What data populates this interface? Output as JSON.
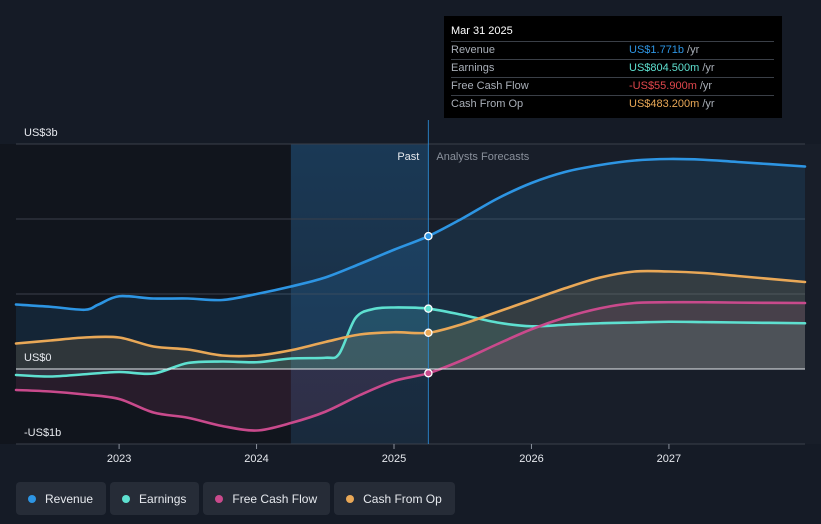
{
  "chart_data": {
    "type": "line",
    "y_labels": [
      "US$3b",
      "US$0",
      "-US$1b"
    ],
    "ylim": [
      -1000,
      3000
    ],
    "xlim": [
      2022.25,
      2027.99
    ],
    "x_ticks": [
      {
        "value": 2023,
        "label": "2023"
      },
      {
        "value": 2024,
        "label": "2024"
      },
      {
        "value": 2025,
        "label": "2025"
      },
      {
        "value": 2026,
        "label": "2026"
      },
      {
        "value": 2027,
        "label": "2027"
      }
    ],
    "divider_x": 2025.25,
    "highlight_start": 2024.25,
    "past_label": "Past",
    "forecast_label": "Analysts Forecasts",
    "series": [
      {
        "name": "Revenue",
        "color": "#2d95e3",
        "points": [
          [
            2022.25,
            860
          ],
          [
            2022.5,
            830
          ],
          [
            2022.75,
            790
          ],
          [
            2022.85,
            860
          ],
          [
            2023.0,
            970
          ],
          [
            2023.25,
            940
          ],
          [
            2023.5,
            940
          ],
          [
            2023.75,
            920
          ],
          [
            2024.0,
            1000
          ],
          [
            2024.25,
            1100
          ],
          [
            2024.5,
            1220
          ],
          [
            2024.75,
            1400
          ],
          [
            2025.0,
            1590
          ],
          [
            2025.25,
            1771
          ],
          [
            2025.5,
            2010
          ],
          [
            2025.75,
            2270
          ],
          [
            2026.0,
            2480
          ],
          [
            2026.25,
            2630
          ],
          [
            2026.5,
            2720
          ],
          [
            2026.75,
            2780
          ],
          [
            2027.0,
            2800
          ],
          [
            2027.25,
            2790
          ],
          [
            2027.5,
            2760
          ],
          [
            2027.99,
            2700
          ]
        ]
      },
      {
        "name": "Earnings",
        "color": "#5ee0d0",
        "points": [
          [
            2022.25,
            -80
          ],
          [
            2022.5,
            -100
          ],
          [
            2022.75,
            -70
          ],
          [
            2023.0,
            -40
          ],
          [
            2023.25,
            -60
          ],
          [
            2023.5,
            80
          ],
          [
            2023.75,
            100
          ],
          [
            2024.0,
            90
          ],
          [
            2024.25,
            140
          ],
          [
            2024.5,
            150
          ],
          [
            2024.6,
            200
          ],
          [
            2024.72,
            680
          ],
          [
            2024.85,
            800
          ],
          [
            2025.0,
            820
          ],
          [
            2025.25,
            804.5
          ],
          [
            2025.5,
            720
          ],
          [
            2025.75,
            620
          ],
          [
            2026.0,
            570
          ],
          [
            2026.25,
            590
          ],
          [
            2026.5,
            610
          ],
          [
            2026.75,
            620
          ],
          [
            2027.0,
            630
          ],
          [
            2027.25,
            625
          ],
          [
            2027.5,
            620
          ],
          [
            2027.99,
            610
          ]
        ]
      },
      {
        "name": "Free Cash Flow",
        "color": "#c94a8c",
        "points": [
          [
            2022.25,
            -280
          ],
          [
            2022.5,
            -300
          ],
          [
            2022.75,
            -340
          ],
          [
            2023.0,
            -400
          ],
          [
            2023.25,
            -580
          ],
          [
            2023.5,
            -650
          ],
          [
            2023.75,
            -760
          ],
          [
            2024.0,
            -820
          ],
          [
            2024.25,
            -720
          ],
          [
            2024.5,
            -570
          ],
          [
            2024.75,
            -350
          ],
          [
            2025.0,
            -160
          ],
          [
            2025.25,
            -55.9
          ],
          [
            2025.5,
            120
          ],
          [
            2025.75,
            330
          ],
          [
            2026.0,
            530
          ],
          [
            2026.25,
            690
          ],
          [
            2026.5,
            810
          ],
          [
            2026.75,
            880
          ],
          [
            2027.0,
            890
          ],
          [
            2027.25,
            890
          ],
          [
            2027.5,
            885
          ],
          [
            2027.99,
            880
          ]
        ]
      },
      {
        "name": "Cash From Op",
        "color": "#e9a857",
        "points": [
          [
            2022.25,
            340
          ],
          [
            2022.5,
            380
          ],
          [
            2022.75,
            420
          ],
          [
            2023.0,
            420
          ],
          [
            2023.25,
            300
          ],
          [
            2023.5,
            260
          ],
          [
            2023.75,
            180
          ],
          [
            2024.0,
            180
          ],
          [
            2024.25,
            250
          ],
          [
            2024.5,
            360
          ],
          [
            2024.75,
            460
          ],
          [
            2025.0,
            490
          ],
          [
            2025.25,
            483.2
          ],
          [
            2025.5,
            600
          ],
          [
            2025.75,
            760
          ],
          [
            2026.0,
            920
          ],
          [
            2026.25,
            1080
          ],
          [
            2026.5,
            1220
          ],
          [
            2026.75,
            1300
          ],
          [
            2027.0,
            1300
          ],
          [
            2027.25,
            1280
          ],
          [
            2027.5,
            1240
          ],
          [
            2027.99,
            1160
          ]
        ]
      }
    ]
  },
  "tooltip": {
    "date": "Mar 31 2025",
    "rows": [
      {
        "name": "Revenue",
        "value": "US$1.771b",
        "unit": "/yr",
        "color": "#2d95e3"
      },
      {
        "name": "Earnings",
        "value": "US$804.500m",
        "unit": "/yr",
        "color": "#5ee0d0"
      },
      {
        "name": "Free Cash Flow",
        "value": "-US$55.900m",
        "unit": "/yr",
        "color": "#e0474c"
      },
      {
        "name": "Cash From Op",
        "value": "US$483.200m",
        "unit": "/yr",
        "color": "#e9a857"
      }
    ]
  },
  "legend": [
    {
      "label": "Revenue",
      "color": "#2d95e3"
    },
    {
      "label": "Earnings",
      "color": "#5ee0d0"
    },
    {
      "label": "Free Cash Flow",
      "color": "#c94a8c"
    },
    {
      "label": "Cash From Op",
      "color": "#e9a857"
    }
  ]
}
